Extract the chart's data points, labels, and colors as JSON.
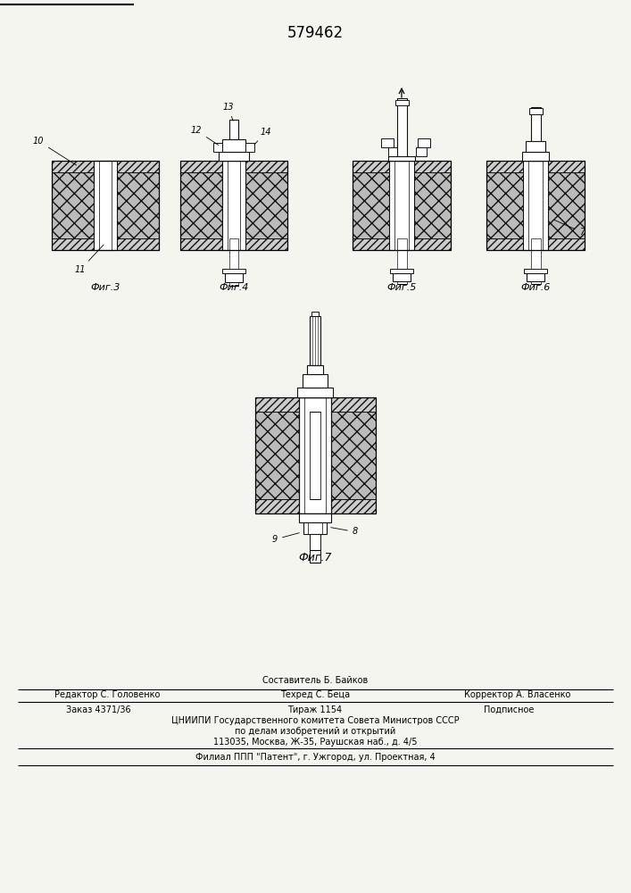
{
  "title": "579462",
  "bg_color": "#f5f5f0",
  "fig3_caption": "Фиг.3",
  "fig4_caption": "Фиг.4",
  "fig5_caption": "Фиг.5",
  "fig6_caption": "Фиг.6",
  "fig7_caption": "Фиг.7",
  "line_color": "#111111",
  "face_hatch": "////",
  "core_hatch": "xx",
  "face_fc": "#cccccc",
  "core_fc": "#bbbbbb",
  "white_fc": "#ffffff",
  "footer": {
    "sostavitel": "Составитель Б. Байков",
    "redaktor": "Редактор С. Головенко",
    "tehred": "Техред С. Беца",
    "korrektor": "Корректор А. Власенко",
    "zakaz": "Заказ 4371/36",
    "tirazh": "Тираж 1154",
    "podpisnoe": "Подписное",
    "tsniipи": "ЦНИИПИ Государственного комитета Совета Министров СССР",
    "po_delam": "по делам изобретений и открытий",
    "address": "113035, Москва, Ж-35, Раушская наб., д. 4/5",
    "filial": "Филиал ППП \"Патент\", г. Ужгород, ул. Проектная, 4"
  }
}
